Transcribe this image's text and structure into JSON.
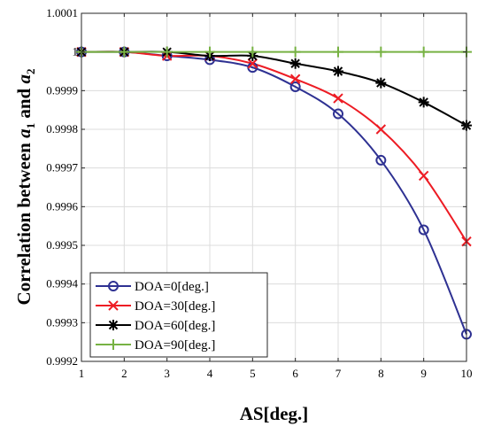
{
  "chart_data": {
    "type": "line",
    "x": [
      1,
      2,
      3,
      4,
      5,
      6,
      7,
      8,
      9,
      10
    ],
    "xticks": [
      "1",
      "2",
      "3",
      "4",
      "5",
      "6",
      "7",
      "8",
      "9",
      "10"
    ],
    "yticks": [
      {
        "value": 0.9992,
        "label": "0.9992"
      },
      {
        "value": 0.9993,
        "label": "0.9993"
      },
      {
        "value": 0.9994,
        "label": "0.9994"
      },
      {
        "value": 0.9995,
        "label": "0.9995"
      },
      {
        "value": 0.9996,
        "label": "0.9996"
      },
      {
        "value": 0.9997,
        "label": "0.9997"
      },
      {
        "value": 0.9998,
        "label": "0.9998"
      },
      {
        "value": 0.9999,
        "label": "0.9999"
      },
      {
        "value": 1.0,
        "label": "1"
      },
      {
        "value": 1.0001,
        "label": "1.0001"
      }
    ],
    "xlim": [
      1,
      10
    ],
    "ylim": [
      0.9992,
      1.0001
    ],
    "xlabel": "AS[deg.]",
    "ylabel": {
      "prefix": "Correlation between ",
      "a1": "a",
      "sub1": "1",
      "and": " and ",
      "a2": "a",
      "sub2": "2"
    },
    "grid": true,
    "legend_position": "bottom-left",
    "series": [
      {
        "name": "DOA=0[deg.]",
        "color": "#2e3192",
        "marker": "circle",
        "values": [
          1.0,
          1.0,
          0.99999,
          0.99998,
          0.99996,
          0.99991,
          0.99984,
          0.99972,
          0.99954,
          0.99927
        ]
      },
      {
        "name": "DOA=30[deg.]",
        "color": "#ed1c24",
        "marker": "x",
        "values": [
          1.0,
          1.0,
          0.99999,
          0.99999,
          0.99997,
          0.99993,
          0.99988,
          0.9998,
          0.99968,
          0.99951
        ]
      },
      {
        "name": "DOA=60[deg.]",
        "color": "#000000",
        "marker": "star",
        "values": [
          1.0,
          1.0,
          1.0,
          0.99999,
          0.99999,
          0.99997,
          0.99995,
          0.99992,
          0.99987,
          0.99981
        ]
      },
      {
        "name": "DOA=90[deg.]",
        "color": "#77b243",
        "marker": "plus",
        "values": [
          1.0,
          1.0,
          1.0,
          1.0,
          1.0,
          1.0,
          1.0,
          1.0,
          1.0,
          1.0
        ]
      }
    ]
  }
}
